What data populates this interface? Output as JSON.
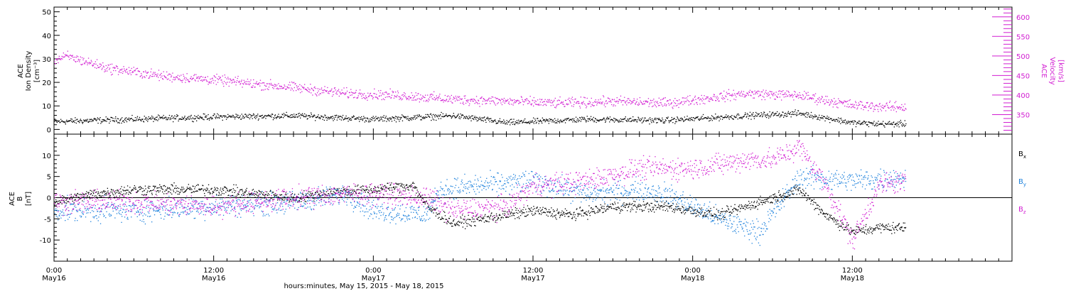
{
  "colors": {
    "black": "#000000",
    "magenta": "#d21ed2",
    "blue": "#1e82dc"
  },
  "chart_data": [
    {
      "type": "scatter",
      "panel": "plasma",
      "ylabel_left": [
        "ACE",
        "Ion Density",
        "[cm⁻³]"
      ],
      "ylabel_right": [
        "ACE",
        "Velocity",
        "[km/s]"
      ],
      "ylim_left": [
        -2,
        52
      ],
      "yticks_left": [
        0,
        10,
        20,
        30,
        40,
        50
      ],
      "ylim_right": [
        300,
        625
      ],
      "yticks_right": [
        350,
        400,
        450,
        500,
        550,
        600
      ],
      "x_hours_range": [
        0,
        64
      ],
      "series": [
        {
          "axis": "left",
          "color_key": "black",
          "knots": [
            [
              0,
              3.5
            ],
            [
              6,
              4.5
            ],
            [
              12,
              5.5
            ],
            [
              18,
              6
            ],
            [
              24,
              4.5
            ],
            [
              30,
              6
            ],
            [
              34,
              3
            ],
            [
              40,
              4.5
            ],
            [
              46,
              4
            ],
            [
              52,
              6
            ],
            [
              56,
              7
            ],
            [
              60,
              3
            ],
            [
              62,
              2.5
            ]
          ],
          "noise": 0.9
        },
        {
          "axis": "right",
          "color_key": "magenta",
          "knots": [
            [
              0,
              490
            ],
            [
              1,
              500
            ],
            [
              4,
              470
            ],
            [
              8,
              450
            ],
            [
              12,
              440
            ],
            [
              18,
              420
            ],
            [
              22,
              405
            ],
            [
              26,
              400
            ],
            [
              30,
              390
            ],
            [
              34,
              385
            ],
            [
              38,
              380
            ],
            [
              42,
              385
            ],
            [
              46,
              380
            ],
            [
              52,
              405
            ],
            [
              56,
              400
            ],
            [
              60,
              375
            ],
            [
              63,
              370
            ]
          ],
          "noise": 9
        }
      ]
    },
    {
      "type": "scatter",
      "panel": "magnetic field",
      "ylabel_left": [
        "ACE",
        "B",
        "[nT]"
      ],
      "ylim": [
        -15,
        15
      ],
      "yticks": [
        -10,
        -5,
        0,
        5,
        10
      ],
      "zero_line": true,
      "x_hours_range": [
        0,
        64
      ],
      "series": [
        {
          "name": "B",
          "subscript": "x",
          "color_key": "black",
          "knots": [
            [
              0,
              -1
            ],
            [
              3,
              1
            ],
            [
              6,
              2
            ],
            [
              12,
              2
            ],
            [
              18,
              0
            ],
            [
              21,
              1.5
            ],
            [
              24,
              2
            ],
            [
              27,
              3
            ],
            [
              28,
              -2
            ],
            [
              30,
              -6
            ],
            [
              36,
              -3
            ],
            [
              39,
              -4
            ],
            [
              42,
              -2
            ],
            [
              46,
              -2
            ],
            [
              50,
              -4
            ],
            [
              54,
              0
            ],
            [
              56,
              2
            ],
            [
              58,
              -4
            ],
            [
              60,
              -8
            ],
            [
              62,
              -7
            ],
            [
              64,
              -7
            ]
          ],
          "noise": 0.9
        },
        {
          "name": "B",
          "subscript": "y",
          "color_key": "blue",
          "knots": [
            [
              0,
              -3
            ],
            [
              6,
              -3
            ],
            [
              12,
              -2
            ],
            [
              18,
              -1
            ],
            [
              22,
              1
            ],
            [
              24,
              -3
            ],
            [
              28,
              -4
            ],
            [
              29,
              2
            ],
            [
              32,
              3
            ],
            [
              36,
              4
            ],
            [
              40,
              1
            ],
            [
              44,
              2
            ],
            [
              46,
              1
            ],
            [
              50,
              -5
            ],
            [
              53,
              -8
            ],
            [
              56,
              5
            ],
            [
              60,
              4
            ],
            [
              64,
              5
            ]
          ],
          "noise": 1.8
        },
        {
          "name": "B",
          "subscript": "z",
          "color_key": "magenta",
          "knots": [
            [
              0,
              -1
            ],
            [
              6,
              -1
            ],
            [
              12,
              -2
            ],
            [
              18,
              0
            ],
            [
              22,
              1
            ],
            [
              24,
              1
            ],
            [
              28,
              0
            ],
            [
              30,
              -3
            ],
            [
              34,
              -2
            ],
            [
              36,
              3
            ],
            [
              40,
              4
            ],
            [
              44,
              7
            ],
            [
              48,
              7
            ],
            [
              52,
              9
            ],
            [
              54,
              9
            ],
            [
              56,
              12
            ],
            [
              58,
              3
            ],
            [
              60,
              -10
            ],
            [
              62,
              3
            ],
            [
              64,
              4
            ]
          ],
          "noise": 1.8
        }
      ]
    }
  ],
  "x_axis": {
    "ticks": [
      {
        "time": "0:00",
        "date": "May16"
      },
      {
        "time": "12:00",
        "date": "May16"
      },
      {
        "time": "0:00",
        "date": "May17"
      },
      {
        "time": "12:00",
        "date": "May17"
      },
      {
        "time": "0:00",
        "date": "May18"
      },
      {
        "time": "12:00",
        "date": "May18"
      }
    ],
    "tick_hours": [
      0,
      12,
      24,
      36,
      48,
      60
    ],
    "range_hours": [
      0,
      72
    ],
    "xlabel": "hours:minutes, May 15, 2015 - May 18, 2015"
  }
}
